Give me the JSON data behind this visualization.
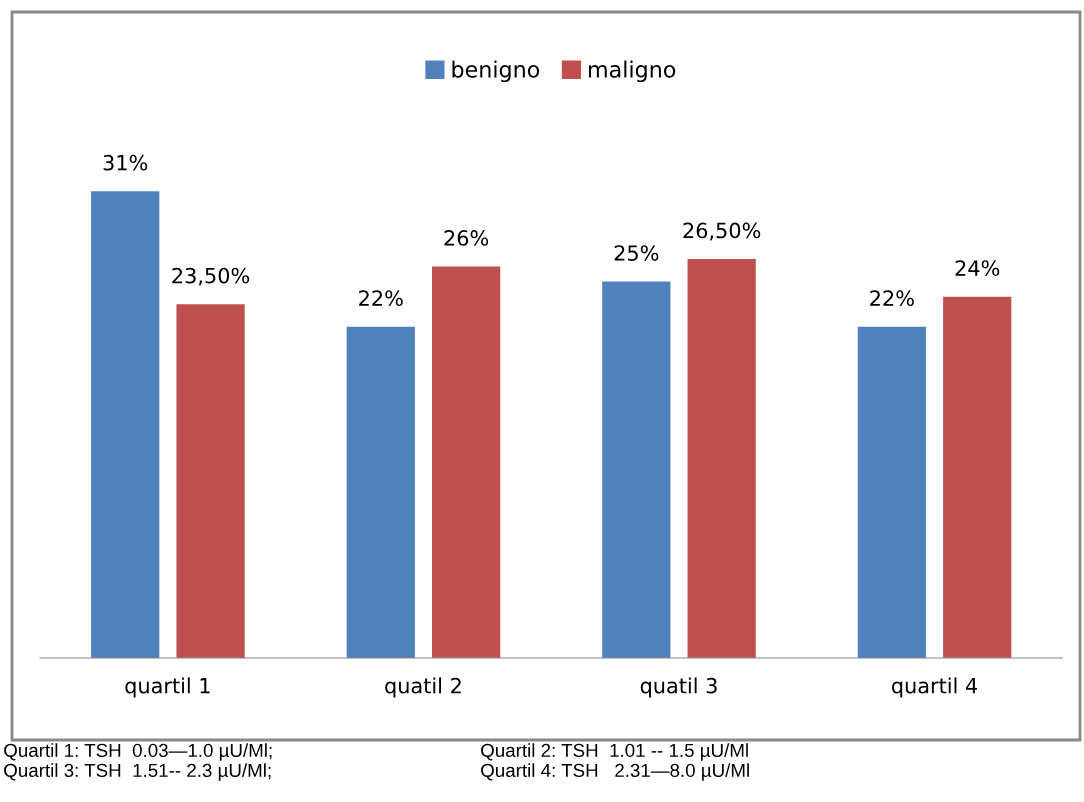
{
  "chart_data": {
    "type": "bar",
    "categories": [
      "quartil 1",
      "quatil 2",
      "quatil 3",
      "quartil 4"
    ],
    "series": [
      {
        "name": "benigno",
        "color": "#4f81bd",
        "values": [
          31,
          22,
          25,
          22
        ],
        "value_labels": [
          "31%",
          "22%",
          "25%",
          "22%"
        ]
      },
      {
        "name": "maligno",
        "color": "#c0504d",
        "values": [
          23.5,
          26,
          26.5,
          24
        ],
        "value_labels": [
          "23,50%",
          "26%",
          "26,50%",
          "24%"
        ]
      }
    ],
    "tick_labels": "x",
    "grid": false,
    "legend": "top",
    "annotations": [
      "Quartil 1: TSH  0.03—1.0 µU/Ml;",
      "Quartil 2: TSH  1.01 -- 1.5 µU/Ml",
      "Quartil 3: TSH  1.51-- 2.3 µU/Ml;",
      "Quartil 4: TSH   2.31—8.0 µU/Ml"
    ]
  }
}
